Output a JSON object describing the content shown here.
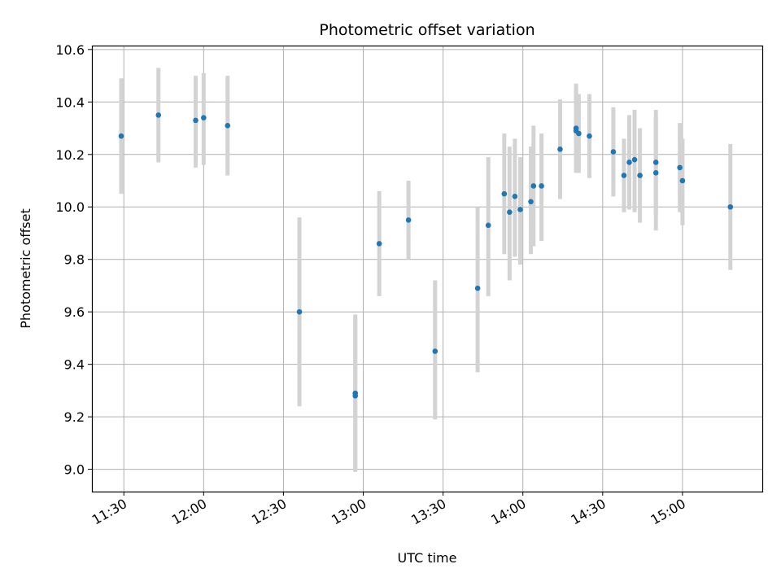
{
  "chart_data": {
    "type": "scatter",
    "title": "Photometric offset variation",
    "xlabel": "UTC time",
    "ylabel": "Photometric offset",
    "x_axis_type": "time",
    "xlim": [
      "11:18",
      "15:30"
    ],
    "ylim": [
      8.915,
      10.615
    ],
    "grid": true,
    "point_color": "#1f77b4",
    "errorbar_color": "#d3d3d3",
    "x_ticks": [
      "11:30",
      "12:00",
      "12:30",
      "13:00",
      "13:30",
      "14:00",
      "14:30",
      "15:00"
    ],
    "y_ticks": [
      "9.0",
      "9.2",
      "9.4",
      "9.6",
      "9.8",
      "10.0",
      "10.2",
      "10.4",
      "10.6"
    ],
    "points": [
      {
        "time": "11:29",
        "y": 10.27,
        "lo": 10.05,
        "hi": 10.49
      },
      {
        "time": "11:43",
        "y": 10.35,
        "lo": 10.17,
        "hi": 10.53
      },
      {
        "time": "11:57",
        "y": 10.33,
        "lo": 10.15,
        "hi": 10.5
      },
      {
        "time": "12:00",
        "y": 10.34,
        "lo": 10.16,
        "hi": 10.51
      },
      {
        "time": "12:09",
        "y": 10.31,
        "lo": 10.12,
        "hi": 10.5
      },
      {
        "time": "12:36",
        "y": 9.6,
        "lo": 9.24,
        "hi": 9.96
      },
      {
        "time": "12:57",
        "y": 9.28,
        "lo": 8.99,
        "hi": 9.59
      },
      {
        "time": "12:57",
        "y": 9.29,
        "lo": 9.0,
        "hi": 9.58
      },
      {
        "time": "13:06",
        "y": 9.86,
        "lo": 9.66,
        "hi": 10.06
      },
      {
        "time": "13:17",
        "y": 9.95,
        "lo": 9.8,
        "hi": 10.1
      },
      {
        "time": "13:27",
        "y": 9.45,
        "lo": 9.19,
        "hi": 9.72
      },
      {
        "time": "13:43",
        "y": 9.69,
        "lo": 9.37,
        "hi": 10.0
      },
      {
        "time": "13:47",
        "y": 9.93,
        "lo": 9.66,
        "hi": 10.19
      },
      {
        "time": "13:53",
        "y": 10.05,
        "lo": 9.82,
        "hi": 10.28
      },
      {
        "time": "13:55",
        "y": 9.98,
        "lo": 9.72,
        "hi": 10.23
      },
      {
        "time": "13:57",
        "y": 10.04,
        "lo": 9.81,
        "hi": 10.26
      },
      {
        "time": "13:59",
        "y": 9.99,
        "lo": 9.78,
        "hi": 10.19
      },
      {
        "time": "14:03",
        "y": 10.02,
        "lo": 9.82,
        "hi": 10.23
      },
      {
        "time": "14:04",
        "y": 10.08,
        "lo": 9.85,
        "hi": 10.31
      },
      {
        "time": "14:07",
        "y": 10.08,
        "lo": 9.87,
        "hi": 10.28
      },
      {
        "time": "14:14",
        "y": 10.22,
        "lo": 10.03,
        "hi": 10.41
      },
      {
        "time": "14:20",
        "y": 10.29,
        "lo": 10.13,
        "hi": 10.45
      },
      {
        "time": "14:20",
        "y": 10.3,
        "lo": 10.13,
        "hi": 10.47
      },
      {
        "time": "14:21",
        "y": 10.28,
        "lo": 10.13,
        "hi": 10.43
      },
      {
        "time": "14:25",
        "y": 10.27,
        "lo": 10.11,
        "hi": 10.43
      },
      {
        "time": "14:34",
        "y": 10.21,
        "lo": 10.04,
        "hi": 10.38
      },
      {
        "time": "14:38",
        "y": 10.12,
        "lo": 9.98,
        "hi": 10.26
      },
      {
        "time": "14:40",
        "y": 10.17,
        "lo": 9.99,
        "hi": 10.35
      },
      {
        "time": "14:42",
        "y": 10.18,
        "lo": 9.98,
        "hi": 10.37
      },
      {
        "time": "14:44",
        "y": 10.12,
        "lo": 9.94,
        "hi": 10.3
      },
      {
        "time": "14:50",
        "y": 10.17,
        "lo": 9.97,
        "hi": 10.37
      },
      {
        "time": "14:50",
        "y": 10.13,
        "lo": 9.91,
        "hi": 10.34
      },
      {
        "time": "14:59",
        "y": 10.15,
        "lo": 9.98,
        "hi": 10.32
      },
      {
        "time": "15:00",
        "y": 10.1,
        "lo": 9.93,
        "hi": 10.26
      },
      {
        "time": "15:18",
        "y": 10.0,
        "lo": 9.76,
        "hi": 10.24
      }
    ]
  }
}
